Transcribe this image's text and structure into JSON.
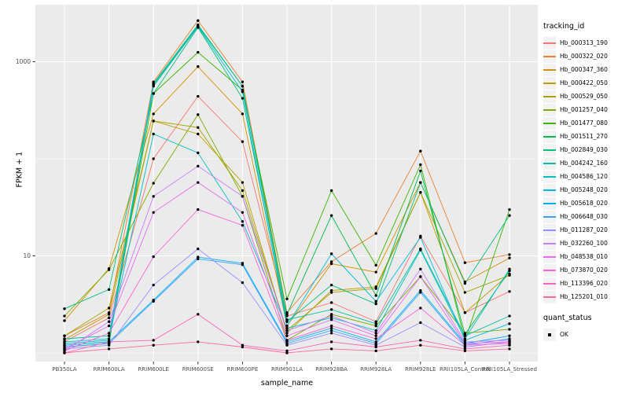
{
  "panel": {
    "background": "#EBEBEB",
    "gridline_color": "#FFFFFF",
    "tick_color": "#333333",
    "tick_label_color": "#4D4D4D",
    "point_color": "#000000",
    "legend_key_fill": "#F2F2F2"
  },
  "chart_data": {
    "type": "line",
    "title": "",
    "xlabel": "sample_name",
    "ylabel": "FPKM + 1",
    "y_scale": "log10",
    "y_ticks": [
      10,
      1000
    ],
    "y_gridlines_minor": [
      1,
      100
    ],
    "ylim": [
      1,
      3700
    ],
    "grid": true,
    "legend_position": "right",
    "legend_titles": {
      "color": "tracking_id",
      "shape": "quant_status"
    },
    "quant_status_values": [
      "OK"
    ],
    "categories": [
      "PB350LA",
      "RRIM600LA",
      "RRIM600LE",
      "RRIM600SE",
      "RRIM600PE",
      "RRIM901LA",
      "RRIM928BA",
      "RRIM928LA",
      "RRIM928LE",
      "RRII105LA_Control",
      "RRII105LA_Stressed"
    ],
    "series": [
      {
        "name": "Hb_000313_190",
        "color": "#F8766D",
        "values": [
          1.3,
          2.3,
          100,
          440,
          150,
          2.4,
          3.3,
          2.1,
          16,
          2.6,
          4.3
        ]
      },
      {
        "name": "Hb_000322_020",
        "color": "#EA8331",
        "values": [
          1.5,
          2.6,
          620,
          2650,
          620,
          2.6,
          8.7,
          17,
          120,
          8.5,
          10.3
        ]
      },
      {
        "name": "Hb_000347_360",
        "color": "#D89000",
        "values": [
          2.15,
          7.4,
          290,
          890,
          290,
          1.9,
          8.3,
          6.8,
          57,
          5.4,
          9.5
        ]
      },
      {
        "name": "Hb_000422_050",
        "color": "#C09B00",
        "values": [
          1.37,
          2.5,
          245,
          180,
          57,
          1.6,
          4.4,
          4.8,
          45,
          2.6,
          6.5
        ]
      },
      {
        "name": "Hb_000529_050",
        "color": "#A3A500",
        "values": [
          1.5,
          2.9,
          245,
          210,
          47,
          1.7,
          4.2,
          4.6,
          45,
          4.2,
          6.3
        ]
      },
      {
        "name": "Hb_001257_040",
        "color": "#7CAE00",
        "values": [
          2.4,
          7.2,
          56,
          285,
          41,
          1.35,
          2.5,
          1.9,
          6.1,
          1.6,
          1.75
        ]
      },
      {
        "name": "Hb_001477_080",
        "color": "#39B600",
        "values": [
          1.2,
          1.3,
          470,
          1250,
          510,
          3.6,
          47,
          8.0,
          87,
          1.35,
          30
        ]
      },
      {
        "name": "Hb_001511_270",
        "color": "#00BB4E",
        "values": [
          1.15,
          1.25,
          580,
          2350,
          560,
          2.5,
          26,
          3.9,
          75,
          1.55,
          7.0
        ]
      },
      {
        "name": "Hb_002849_030",
        "color": "#00BF7D",
        "values": [
          2.85,
          4.5,
          470,
          2250,
          420,
          2.1,
          5.0,
          3.2,
          57,
          5.2,
          26
        ]
      },
      {
        "name": "Hb_004242_160",
        "color": "#00C1A3",
        "values": [
          1.4,
          1.5,
          600,
          2400,
          560,
          2.2,
          2.8,
          2.0,
          11.8,
          1.5,
          2.4
        ]
      },
      {
        "name": "Hb_004586_120",
        "color": "#00BFC4",
        "values": [
          1.3,
          1.4,
          180,
          115,
          22.6,
          1.8,
          2.3,
          1.7,
          11.5,
          1.4,
          7.3
        ]
      },
      {
        "name": "Hb_005248_020",
        "color": "#00BAE0",
        "values": [
          1.25,
          1.35,
          560,
          2300,
          490,
          1.9,
          10.5,
          3.4,
          15.5,
          1.35,
          2.0
        ]
      },
      {
        "name": "Hb_005618_020",
        "color": "#00B0F6",
        "values": [
          1.2,
          1.3,
          3.5,
          9.7,
          8.4,
          1.3,
          1.8,
          1.3,
          4.4,
          1.25,
          1.5
        ]
      },
      {
        "name": "Hb_006648_030",
        "color": "#35A2FF",
        "values": [
          1.15,
          1.25,
          3.4,
          9.3,
          8.1,
          1.25,
          1.7,
          1.25,
          4.2,
          1.2,
          1.4
        ]
      },
      {
        "name": "Hb_011287_020",
        "color": "#9590FF",
        "values": [
          1.1,
          1.2,
          5.0,
          11.8,
          5.3,
          1.2,
          1.6,
          1.2,
          2.05,
          1.15,
          1.3
        ]
      },
      {
        "name": "Hb_032260_100",
        "color": "#C77CFF",
        "values": [
          1.05,
          2.1,
          41,
          84,
          41,
          1.7,
          2.4,
          1.6,
          7.3,
          1.3,
          1.35
        ]
      },
      {
        "name": "Hb_048538_010",
        "color": "#E76BF3",
        "values": [
          1.1,
          1.9,
          28,
          57,
          28,
          1.5,
          2.2,
          1.5,
          6.1,
          1.25,
          1.3
        ]
      },
      {
        "name": "Hb_073870_020",
        "color": "#FA62DB",
        "values": [
          1.05,
          1.6,
          9.8,
          30,
          20.6,
          1.35,
          1.9,
          1.4,
          2.9,
          1.2,
          1.25
        ]
      },
      {
        "name": "Hb_113396_020",
        "color": "#FF62BC",
        "values": [
          1.0,
          1.3,
          1.35,
          2.5,
          1.2,
          1.05,
          1.3,
          1.15,
          1.35,
          1.1,
          1.2
        ]
      },
      {
        "name": "Hb_125201_010",
        "color": "#FF6A98",
        "values": [
          1.0,
          1.1,
          1.2,
          1.3,
          1.15,
          1.0,
          1.1,
          1.05,
          1.2,
          1.05,
          1.1
        ]
      }
    ]
  }
}
